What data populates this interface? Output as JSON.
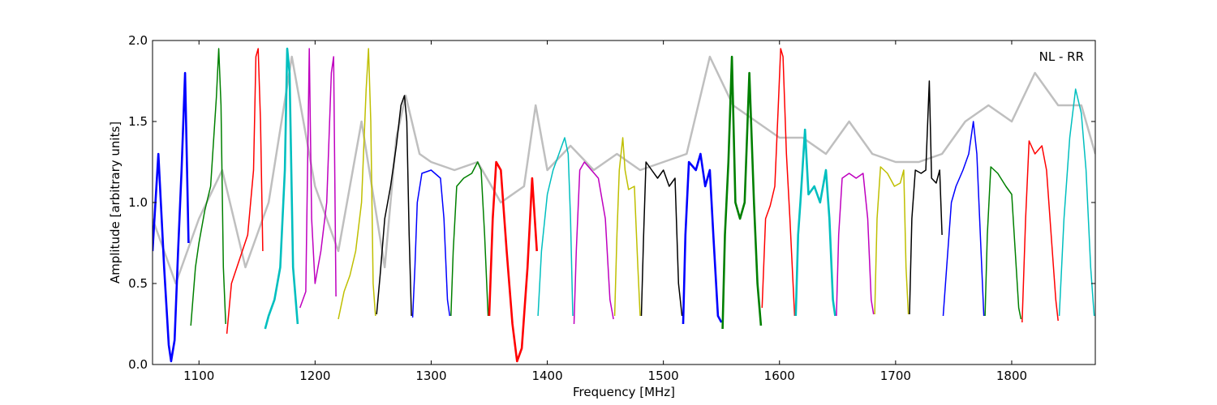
{
  "chart_data": {
    "type": "line",
    "title": "",
    "annotation": "NL - RR",
    "xlabel": "Frequency [MHz]",
    "ylabel": "Amplitude [arbitrary units]",
    "xlim": [
      1060,
      1872
    ],
    "ylim": [
      0.0,
      2.0
    ],
    "xticks": [
      1100,
      1200,
      1300,
      1400,
      1500,
      1600,
      1700,
      1800
    ],
    "yticks": [
      0.0,
      0.5,
      1.0,
      1.5,
      2.0
    ],
    "xtick_labels": [
      "1100",
      "1200",
      "1300",
      "1400",
      "1500",
      "1600",
      "1700",
      "1800"
    ],
    "ytick_labels": [
      "0.0",
      "0.5",
      "1.0",
      "1.5",
      "2.0"
    ],
    "grid": false,
    "background_series": {
      "color": "#bfbfbf",
      "points": [
        [
          1060,
          0.9
        ],
        [
          1080,
          0.5
        ],
        [
          1100,
          0.9
        ],
        [
          1120,
          1.2
        ],
        [
          1140,
          0.6
        ],
        [
          1160,
          1.0
        ],
        [
          1180,
          1.9
        ],
        [
          1200,
          1.1
        ],
        [
          1220,
          0.7
        ],
        [
          1240,
          1.5
        ],
        [
          1260,
          0.6
        ],
        [
          1270,
          1.4
        ],
        [
          1278,
          1.66
        ],
        [
          1290,
          1.3
        ],
        [
          1300,
          1.25
        ],
        [
          1320,
          1.2
        ],
        [
          1340,
          1.25
        ],
        [
          1360,
          1.0
        ],
        [
          1380,
          1.1
        ],
        [
          1390,
          1.6
        ],
        [
          1400,
          1.2
        ],
        [
          1420,
          1.35
        ],
        [
          1440,
          1.2
        ],
        [
          1460,
          1.3
        ],
        [
          1480,
          1.2
        ],
        [
          1500,
          1.25
        ],
        [
          1520,
          1.3
        ],
        [
          1540,
          1.9
        ],
        [
          1560,
          1.6
        ],
        [
          1580,
          1.5
        ],
        [
          1600,
          1.4
        ],
        [
          1620,
          1.4
        ],
        [
          1640,
          1.3
        ],
        [
          1660,
          1.5
        ],
        [
          1680,
          1.3
        ],
        [
          1700,
          1.25
        ],
        [
          1720,
          1.25
        ],
        [
          1740,
          1.3
        ],
        [
          1760,
          1.5
        ],
        [
          1780,
          1.6
        ],
        [
          1800,
          1.5
        ],
        [
          1820,
          1.8
        ],
        [
          1840,
          1.6
        ],
        [
          1860,
          1.6
        ],
        [
          1872,
          1.3
        ]
      ]
    },
    "bands": [
      {
        "color": "#0000ff",
        "noisy": true,
        "points": [
          [
            1060,
            0.7
          ],
          [
            1065,
            1.3
          ],
          [
            1070,
            0.6
          ],
          [
            1074,
            0.12
          ],
          [
            1076,
            0.02
          ],
          [
            1079,
            0.15
          ],
          [
            1082,
            0.7
          ],
          [
            1085,
            1.2
          ],
          [
            1088,
            1.8
          ],
          [
            1091,
            0.75
          ]
        ]
      },
      {
        "color": "#008000",
        "noisy": false,
        "points": [
          [
            1093,
            0.24
          ],
          [
            1097,
            0.6
          ],
          [
            1100,
            0.75
          ],
          [
            1105,
            0.95
          ],
          [
            1110,
            1.1
          ],
          [
            1115,
            1.65
          ],
          [
            1117,
            1.95
          ],
          [
            1119,
            1.6
          ],
          [
            1121,
            0.6
          ],
          [
            1123,
            0.25
          ]
        ]
      },
      {
        "color": "#ff0000",
        "noisy": false,
        "points": [
          [
            1124,
            0.19
          ],
          [
            1128,
            0.5
          ],
          [
            1135,
            0.65
          ],
          [
            1142,
            0.8
          ],
          [
            1147,
            1.2
          ],
          [
            1149,
            1.9
          ],
          [
            1151,
            1.95
          ],
          [
            1153,
            1.5
          ],
          [
            1155,
            0.7
          ]
        ]
      },
      {
        "color": "#00bfbf",
        "noisy": true,
        "points": [
          [
            1157,
            0.22
          ],
          [
            1160,
            0.3
          ],
          [
            1165,
            0.4
          ],
          [
            1170,
            0.6
          ],
          [
            1174,
            1.2
          ],
          [
            1176,
            1.95
          ],
          [
            1178,
            1.8
          ],
          [
            1181,
            0.6
          ],
          [
            1185,
            0.25
          ]
        ]
      },
      {
        "color": "#bf00bf",
        "noisy": false,
        "points": [
          [
            1187,
            0.35
          ],
          [
            1192,
            0.45
          ],
          [
            1195,
            1.95
          ],
          [
            1197,
            0.9
          ],
          [
            1200,
            0.5
          ],
          [
            1205,
            0.7
          ],
          [
            1210,
            1.0
          ],
          [
            1214,
            1.8
          ],
          [
            1216,
            1.9
          ],
          [
            1218,
            0.42
          ]
        ]
      },
      {
        "color": "#bfbf00",
        "noisy": false,
        "points": [
          [
            1220,
            0.28
          ],
          [
            1225,
            0.45
          ],
          [
            1230,
            0.55
          ],
          [
            1235,
            0.7
          ],
          [
            1240,
            1.0
          ],
          [
            1244,
            1.7
          ],
          [
            1246,
            1.95
          ],
          [
            1248,
            1.5
          ],
          [
            1250,
            0.5
          ],
          [
            1252,
            0.3
          ]
        ]
      },
      {
        "color": "#000000",
        "noisy": false,
        "points": [
          [
            1253,
            0.31
          ],
          [
            1256,
            0.55
          ],
          [
            1260,
            0.9
          ],
          [
            1265,
            1.1
          ],
          [
            1270,
            1.35
          ],
          [
            1274,
            1.6
          ],
          [
            1277,
            1.66
          ],
          [
            1279,
            1.5
          ],
          [
            1281,
            0.8
          ],
          [
            1283,
            0.3
          ]
        ]
      },
      {
        "color": "#0000ff",
        "noisy": false,
        "points": [
          [
            1284,
            0.29
          ],
          [
            1286,
            0.6
          ],
          [
            1288,
            1.0
          ],
          [
            1292,
            1.18
          ],
          [
            1300,
            1.2
          ],
          [
            1308,
            1.15
          ],
          [
            1311,
            0.9
          ],
          [
            1314,
            0.4
          ],
          [
            1316,
            0.3
          ]
        ]
      },
      {
        "color": "#008000",
        "noisy": false,
        "points": [
          [
            1317,
            0.3
          ],
          [
            1319,
            0.7
          ],
          [
            1322,
            1.1
          ],
          [
            1328,
            1.15
          ],
          [
            1335,
            1.18
          ],
          [
            1340,
            1.25
          ],
          [
            1343,
            1.2
          ],
          [
            1346,
            0.8
          ],
          [
            1349,
            0.3
          ]
        ]
      },
      {
        "color": "#ff0000",
        "noisy": true,
        "points": [
          [
            1350,
            0.3
          ],
          [
            1353,
            0.9
          ],
          [
            1356,
            1.25
          ],
          [
            1360,
            1.2
          ],
          [
            1365,
            0.7
          ],
          [
            1370,
            0.25
          ],
          [
            1374,
            0.02
          ],
          [
            1378,
            0.1
          ],
          [
            1383,
            0.6
          ],
          [
            1387,
            1.15
          ],
          [
            1391,
            0.7
          ]
        ]
      },
      {
        "color": "#00bfbf",
        "noisy": false,
        "points": [
          [
            1392,
            0.3
          ],
          [
            1395,
            0.7
          ],
          [
            1400,
            1.05
          ],
          [
            1405,
            1.2
          ],
          [
            1410,
            1.3
          ],
          [
            1415,
            1.4
          ],
          [
            1418,
            1.3
          ],
          [
            1420,
            0.9
          ],
          [
            1422,
            0.3
          ]
        ]
      },
      {
        "color": "#bf00bf",
        "noisy": false,
        "points": [
          [
            1423,
            0.25
          ],
          [
            1425,
            0.7
          ],
          [
            1428,
            1.2
          ],
          [
            1432,
            1.25
          ],
          [
            1438,
            1.2
          ],
          [
            1444,
            1.15
          ],
          [
            1450,
            0.9
          ],
          [
            1454,
            0.4
          ],
          [
            1457,
            0.28
          ]
        ]
      },
      {
        "color": "#bfbf00",
        "noisy": false,
        "points": [
          [
            1458,
            0.3
          ],
          [
            1460,
            0.8
          ],
          [
            1462,
            1.2
          ],
          [
            1465,
            1.4
          ],
          [
            1467,
            1.2
          ],
          [
            1470,
            1.08
          ],
          [
            1475,
            1.1
          ],
          [
            1478,
            0.6
          ],
          [
            1480,
            0.3
          ]
        ]
      },
      {
        "color": "#000000",
        "noisy": false,
        "points": [
          [
            1481,
            0.3
          ],
          [
            1483,
            0.8
          ],
          [
            1485,
            1.25
          ],
          [
            1490,
            1.2
          ],
          [
            1495,
            1.15
          ],
          [
            1500,
            1.2
          ],
          [
            1505,
            1.1
          ],
          [
            1510,
            1.15
          ],
          [
            1513,
            0.5
          ],
          [
            1516,
            0.3
          ]
        ]
      },
      {
        "color": "#0000ff",
        "noisy": true,
        "points": [
          [
            1517,
            0.25
          ],
          [
            1519,
            0.8
          ],
          [
            1522,
            1.25
          ],
          [
            1528,
            1.2
          ],
          [
            1532,
            1.3
          ],
          [
            1536,
            1.1
          ],
          [
            1540,
            1.2
          ],
          [
            1543,
            0.8
          ],
          [
            1547,
            0.3
          ],
          [
            1550,
            0.26
          ]
        ]
      },
      {
        "color": "#008000",
        "noisy": true,
        "points": [
          [
            1551,
            0.22
          ],
          [
            1553,
            0.8
          ],
          [
            1556,
            1.25
          ],
          [
            1559,
            1.9
          ],
          [
            1562,
            1.0
          ],
          [
            1566,
            0.9
          ],
          [
            1570,
            1.0
          ],
          [
            1574,
            1.8
          ],
          [
            1578,
            1.0
          ],
          [
            1581,
            0.5
          ],
          [
            1584,
            0.24
          ]
        ]
      },
      {
        "color": "#ff0000",
        "noisy": false,
        "points": [
          [
            1585,
            0.35
          ],
          [
            1588,
            0.9
          ],
          [
            1592,
            0.98
          ],
          [
            1596,
            1.1
          ],
          [
            1599,
            1.6
          ],
          [
            1601,
            1.95
          ],
          [
            1603,
            1.9
          ],
          [
            1606,
            1.3
          ],
          [
            1609,
            0.9
          ],
          [
            1613,
            0.3
          ]
        ]
      },
      {
        "color": "#00bfbf",
        "noisy": true,
        "points": [
          [
            1614,
            0.3
          ],
          [
            1616,
            0.8
          ],
          [
            1618,
            1.0
          ],
          [
            1622,
            1.45
          ],
          [
            1625,
            1.05
          ],
          [
            1630,
            1.1
          ],
          [
            1635,
            1.0
          ],
          [
            1640,
            1.2
          ],
          [
            1643,
            0.9
          ],
          [
            1646,
            0.4
          ],
          [
            1648,
            0.3
          ]
        ]
      },
      {
        "color": "#bf00bf",
        "noisy": false,
        "points": [
          [
            1649,
            0.3
          ],
          [
            1651,
            0.8
          ],
          [
            1654,
            1.15
          ],
          [
            1660,
            1.18
          ],
          [
            1666,
            1.15
          ],
          [
            1672,
            1.18
          ],
          [
            1676,
            0.9
          ],
          [
            1679,
            0.4
          ],
          [
            1681,
            0.31
          ]
        ]
      },
      {
        "color": "#bfbf00",
        "noisy": false,
        "points": [
          [
            1682,
            0.31
          ],
          [
            1684,
            0.9
          ],
          [
            1687,
            1.22
          ],
          [
            1693,
            1.18
          ],
          [
            1699,
            1.1
          ],
          [
            1704,
            1.12
          ],
          [
            1707,
            1.2
          ],
          [
            1709,
            0.6
          ],
          [
            1711,
            0.31
          ]
        ]
      },
      {
        "color": "#000000",
        "noisy": false,
        "points": [
          [
            1712,
            0.31
          ],
          [
            1714,
            0.9
          ],
          [
            1717,
            1.2
          ],
          [
            1722,
            1.18
          ],
          [
            1726,
            1.2
          ],
          [
            1729,
            1.75
          ],
          [
            1731,
            1.15
          ],
          [
            1735,
            1.12
          ],
          [
            1738,
            1.2
          ],
          [
            1740,
            0.8
          ]
        ]
      },
      {
        "color": "#0000ff",
        "noisy": false,
        "points": [
          [
            1741,
            0.3
          ],
          [
            1744,
            0.6
          ],
          [
            1748,
            1.0
          ],
          [
            1752,
            1.1
          ],
          [
            1758,
            1.2
          ],
          [
            1763,
            1.3
          ],
          [
            1767,
            1.5
          ],
          [
            1770,
            1.3
          ],
          [
            1773,
            0.8
          ],
          [
            1776,
            0.3
          ]
        ]
      },
      {
        "color": "#008000",
        "noisy": false,
        "points": [
          [
            1777,
            0.3
          ],
          [
            1779,
            0.8
          ],
          [
            1782,
            1.22
          ],
          [
            1788,
            1.18
          ],
          [
            1795,
            1.1
          ],
          [
            1800,
            1.05
          ],
          [
            1803,
            0.7
          ],
          [
            1806,
            0.35
          ],
          [
            1808,
            0.28
          ]
        ]
      },
      {
        "color": "#ff0000",
        "noisy": false,
        "points": [
          [
            1809,
            0.26
          ],
          [
            1812,
            0.9
          ],
          [
            1815,
            1.38
          ],
          [
            1820,
            1.3
          ],
          [
            1826,
            1.35
          ],
          [
            1830,
            1.2
          ],
          [
            1834,
            0.8
          ],
          [
            1838,
            0.4
          ],
          [
            1840,
            0.27
          ]
        ]
      },
      {
        "color": "#00bfbf",
        "noisy": false,
        "points": [
          [
            1841,
            0.3
          ],
          [
            1845,
            0.9
          ],
          [
            1850,
            1.4
          ],
          [
            1855,
            1.7
          ],
          [
            1860,
            1.55
          ],
          [
            1864,
            1.2
          ],
          [
            1868,
            0.6
          ],
          [
            1871,
            0.3
          ]
        ]
      }
    ]
  }
}
